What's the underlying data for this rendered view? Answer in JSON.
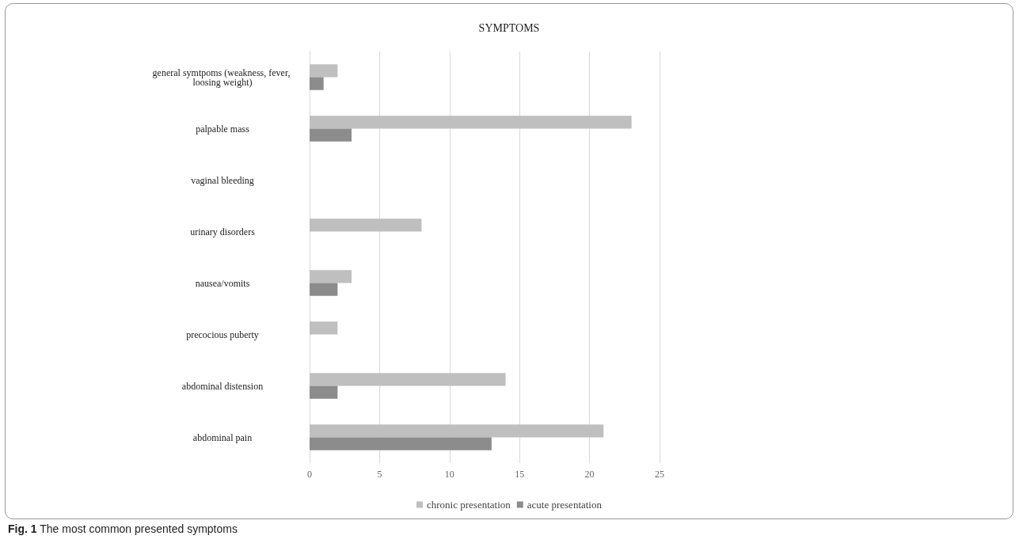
{
  "chart_data": {
    "type": "bar",
    "orientation": "horizontal",
    "title": "SYMPTOMS",
    "categories": [
      "general symtpoms (weakness, fever, loosing weight)",
      "palpable mass",
      "vaginal bleeding",
      "urinary disorders",
      "nausea/vomits",
      "precocious puberty",
      "abdominal distension",
      "abdominal pain"
    ],
    "series": [
      {
        "name": "chronic presentation",
        "color": "#bfbfbf",
        "values": [
          2,
          23,
          0,
          8,
          3,
          2,
          14,
          21
        ]
      },
      {
        "name": "acute presentation",
        "color": "#8c8c8c",
        "values": [
          1,
          3,
          0,
          0,
          2,
          0,
          2,
          13
        ]
      }
    ],
    "xlim": [
      0,
      25
    ],
    "xticks": [
      0,
      5,
      10,
      15,
      20,
      25
    ],
    "grid": "x",
    "legend": "bottom",
    "annotations": [
      "Fig. 1 The most common presented symptoms"
    ]
  }
}
